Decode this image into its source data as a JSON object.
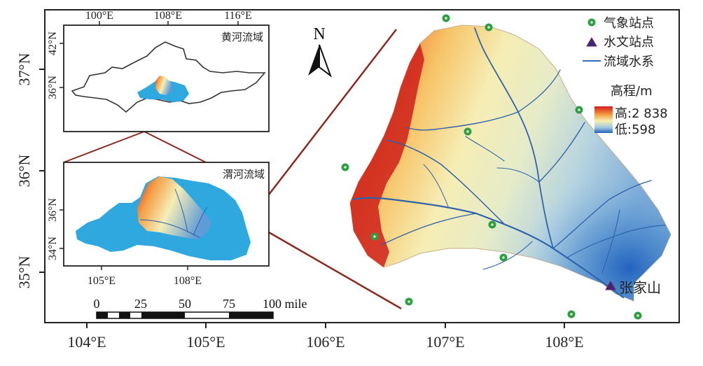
{
  "main_map": {
    "x_ticks": [
      "104°E",
      "105°E",
      "106°E",
      "107°E",
      "108°E"
    ],
    "y_ticks": [
      "37°N",
      "36°N",
      "35°N"
    ]
  },
  "inset_yellow_river": {
    "title": "黄河流域",
    "x_ticks": [
      "100°E",
      "108°E",
      "116°E"
    ],
    "y_ticks": [
      "42°N",
      "36°N"
    ]
  },
  "inset_wei_river": {
    "title": "渭河流域",
    "x_ticks": [
      "105°E",
      "108°E"
    ],
    "y_ticks": [
      "36°N",
      "34°N"
    ]
  },
  "legend": {
    "weather_station": "气象站点",
    "hydro_station": "水文站点",
    "river_system": "流域水系",
    "elevation_title": "高程/m",
    "elevation_high": "高:2 838",
    "elevation_low": "低:598",
    "colors": {
      "station": "#2e9e44",
      "hydro": "#3b2a6e",
      "river": "#2f6db5",
      "high": "#d7191c",
      "low": "#1f6fd1"
    }
  },
  "north_arrow": {
    "label": "N"
  },
  "scale_bar": {
    "labels": [
      "0",
      "25",
      "50",
      "75",
      "100 mile"
    ]
  },
  "station_label": "张家山"
}
